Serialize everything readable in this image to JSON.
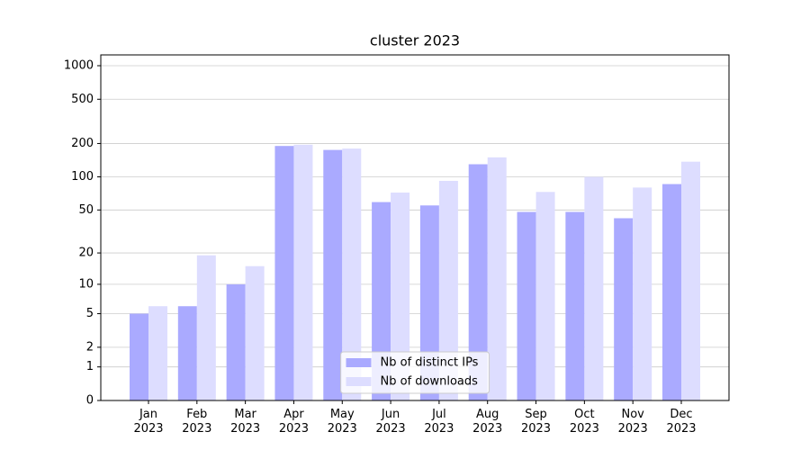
{
  "chart_data": {
    "type": "bar",
    "title": "cluster 2023",
    "yscale": "log1p",
    "grid": true,
    "legend": "lower center",
    "categories": [
      "Jan 2023",
      "Feb 2023",
      "Mar 2023",
      "Apr 2023",
      "May 2023",
      "Jun 2023",
      "Jul 2023",
      "Aug 2023",
      "Sep 2023",
      "Oct 2023",
      "Nov 2023",
      "Dec 2023"
    ],
    "series": [
      {
        "name": "Nb of distinct IPs",
        "color": "#aaaaff",
        "values": [
          5,
          6,
          10,
          190,
          175,
          59,
          55,
          130,
          48,
          48,
          42,
          86
        ]
      },
      {
        "name": "Nb of downloads",
        "color": "#ddddff",
        "values": [
          6,
          19,
          15,
          195,
          180,
          72,
          92,
          150,
          73,
          100,
          80,
          137
        ]
      }
    ],
    "ylim": [
      0,
      1250
    ],
    "yticks": [
      0,
      1,
      2,
      5,
      10,
      20,
      50,
      100,
      200,
      500,
      1000
    ]
  }
}
